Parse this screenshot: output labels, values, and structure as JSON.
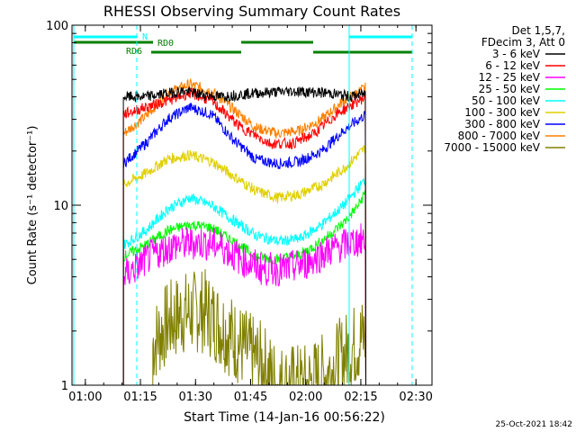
{
  "chart_data": {
    "type": "line",
    "title": "RHESSI Observing Summary Count Rates",
    "xlabel": "Start Time (14-Jan-16 00:56:22)",
    "ylabel": "Count Rate (s⁻¹ detector⁻¹)",
    "yscale": "log",
    "ylim": [
      1,
      100
    ],
    "xlim_minutes_after_start": [
      0,
      98
    ],
    "x_ticks": [
      "01:00",
      "01:15",
      "01:30",
      "01:45",
      "02:00",
      "02:15",
      "02:30"
    ],
    "y_ticks": [
      "1",
      "10",
      "100"
    ],
    "legend_header": [
      "Det 1,5,7,",
      "FDecim 3, Att 0"
    ],
    "legend_position": "right",
    "timestamp": "25-Oct-2021 18:42",
    "flags": [
      {
        "name": "N",
        "color": "#00ffff"
      },
      {
        "name": "RD0",
        "color": "#008000"
      },
      {
        "name": "RD6",
        "color": "#008000"
      }
    ],
    "series": [
      {
        "name": "3 - 6 keV",
        "color": "#000000",
        "points": [
          [
            14,
            40
          ],
          [
            20,
            40
          ],
          [
            30,
            43
          ],
          [
            40,
            40
          ],
          [
            50,
            42
          ],
          [
            60,
            43
          ],
          [
            70,
            42
          ],
          [
            76,
            40
          ],
          [
            80,
            42
          ]
        ]
      },
      {
        "name": "6 - 12 keV",
        "color": "#ff0000",
        "points": [
          [
            14,
            32
          ],
          [
            20,
            35
          ],
          [
            26,
            38
          ],
          [
            32,
            42
          ],
          [
            38,
            38
          ],
          [
            46,
            27
          ],
          [
            54,
            22
          ],
          [
            60,
            22
          ],
          [
            66,
            25
          ],
          [
            72,
            32
          ],
          [
            78,
            38
          ],
          [
            80,
            40
          ]
        ]
      },
      {
        "name": "12 - 25 keV",
        "color": "#ff00ff",
        "points": [
          [
            14,
            4
          ],
          [
            16,
            4.3
          ],
          [
            22,
            5.3
          ],
          [
            28,
            6
          ],
          [
            34,
            6.2
          ],
          [
            40,
            6
          ],
          [
            46,
            5
          ],
          [
            52,
            4.4
          ],
          [
            58,
            4.4
          ],
          [
            64,
            4.8
          ],
          [
            70,
            5.6
          ],
          [
            76,
            6.2
          ],
          [
            80,
            6.5
          ]
        ]
      },
      {
        "name": "25 - 50 keV",
        "color": "#00ff00",
        "points": [
          [
            14,
            5.2
          ],
          [
            20,
            6
          ],
          [
            26,
            7.2
          ],
          [
            32,
            7.8
          ],
          [
            38,
            7.5
          ],
          [
            44,
            6.3
          ],
          [
            50,
            5.2
          ],
          [
            56,
            5
          ],
          [
            62,
            5.3
          ],
          [
            68,
            6.3
          ],
          [
            74,
            8
          ],
          [
            78,
            10
          ],
          [
            80,
            12
          ]
        ]
      },
      {
        "name": "50 - 100 keV",
        "color": "#00ffff",
        "points": [
          [
            14,
            6
          ],
          [
            20,
            7.2
          ],
          [
            26,
            9.5
          ],
          [
            32,
            11
          ],
          [
            38,
            10
          ],
          [
            44,
            8.2
          ],
          [
            50,
            6.8
          ],
          [
            56,
            6.3
          ],
          [
            62,
            6.5
          ],
          [
            68,
            7.8
          ],
          [
            74,
            10
          ],
          [
            80,
            14
          ]
        ]
      },
      {
        "name": "100 - 300 keV",
        "color": "#e0d000",
        "points": [
          [
            14,
            13
          ],
          [
            20,
            15
          ],
          [
            26,
            18
          ],
          [
            32,
            19
          ],
          [
            38,
            17.5
          ],
          [
            44,
            14.5
          ],
          [
            50,
            12
          ],
          [
            56,
            11
          ],
          [
            62,
            11.5
          ],
          [
            68,
            13
          ],
          [
            74,
            16
          ],
          [
            80,
            21
          ]
        ]
      },
      {
        "name": "300 - 800 keV",
        "color": "#0000ff",
        "points": [
          [
            14,
            17
          ],
          [
            20,
            22
          ],
          [
            26,
            30
          ],
          [
            32,
            35
          ],
          [
            38,
            32
          ],
          [
            44,
            23
          ],
          [
            50,
            18
          ],
          [
            56,
            17
          ],
          [
            62,
            17.5
          ],
          [
            68,
            20
          ],
          [
            74,
            26
          ],
          [
            80,
            32
          ]
        ]
      },
      {
        "name": "800 - 7000 keV",
        "color": "#ff8000",
        "points": [
          [
            14,
            25
          ],
          [
            20,
            31
          ],
          [
            26,
            42
          ],
          [
            32,
            47
          ],
          [
            38,
            43
          ],
          [
            44,
            34
          ],
          [
            50,
            27
          ],
          [
            56,
            25
          ],
          [
            62,
            26
          ],
          [
            68,
            30
          ],
          [
            74,
            38
          ],
          [
            80,
            45
          ]
        ]
      },
      {
        "name": "7000 - 15000 keV",
        "color": "#808000",
        "points": [
          [
            22,
            1.7
          ],
          [
            26,
            2.2
          ],
          [
            30,
            2.5
          ],
          [
            36,
            2.6
          ],
          [
            42,
            2
          ],
          [
            48,
            1.5
          ],
          [
            52,
            1.3
          ],
          [
            56,
            1
          ],
          [
            64,
            1
          ],
          [
            70,
            1.2
          ],
          [
            76,
            1.6
          ],
          [
            80,
            1.9
          ]
        ]
      }
    ]
  }
}
